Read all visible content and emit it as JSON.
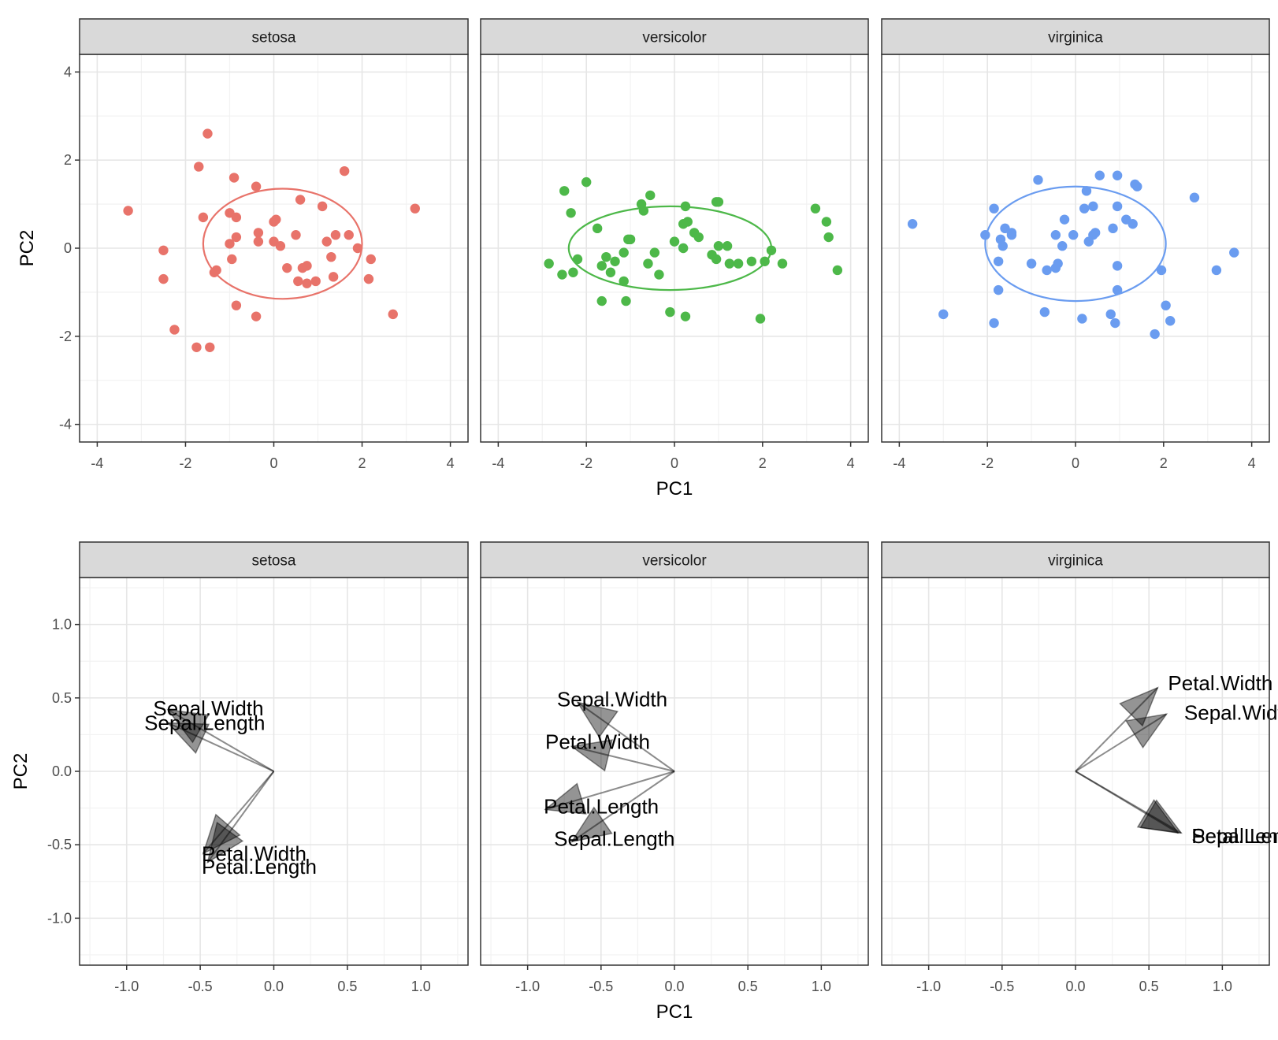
{
  "chart_data": [
    {
      "type": "scatter",
      "title": "",
      "xlabel": "PC1",
      "ylabel": "PC2",
      "xlim": [
        -4.4,
        4.4
      ],
      "ylim": [
        -4.4,
        4.4
      ],
      "xticks": [
        -4,
        -2,
        0,
        2,
        4
      ],
      "yticks": [
        -4,
        -2,
        0,
        2,
        4
      ],
      "xtick_labels": [
        "-4",
        "-2",
        "0",
        "2",
        "4"
      ],
      "ytick_labels": [
        "-4",
        "-2",
        "0",
        "2",
        "4"
      ],
      "grid": true,
      "facets": [
        {
          "name": "setosa",
          "color": "#E8736A",
          "ellipse": {
            "cx": 0.2,
            "cy": 0.1,
            "rx": 1.8,
            "ry": 1.25
          },
          "points": [
            [
              -3.3,
              0.85
            ],
            [
              -1.5,
              2.6
            ],
            [
              -1.7,
              1.85
            ],
            [
              -0.9,
              1.6
            ],
            [
              -0.4,
              1.4
            ],
            [
              1.6,
              1.75
            ],
            [
              3.2,
              0.9
            ],
            [
              -1.6,
              0.7
            ],
            [
              -1.0,
              0.8
            ],
            [
              -0.85,
              0.7
            ],
            [
              0.05,
              0.65
            ],
            [
              0.0,
              0.6
            ],
            [
              0.6,
              1.1
            ],
            [
              1.1,
              0.95
            ],
            [
              -2.5,
              -0.05
            ],
            [
              -2.5,
              -0.7
            ],
            [
              -1.0,
              0.1
            ],
            [
              -0.85,
              0.25
            ],
            [
              -0.35,
              0.35
            ],
            [
              -0.35,
              0.15
            ],
            [
              0.0,
              0.15
            ],
            [
              0.15,
              0.05
            ],
            [
              0.5,
              0.3
            ],
            [
              1.2,
              0.15
            ],
            [
              1.4,
              0.3
            ],
            [
              1.7,
              0.3
            ],
            [
              1.9,
              0.0
            ],
            [
              2.2,
              -0.25
            ],
            [
              -1.3,
              -0.5
            ],
            [
              -1.35,
              -0.55
            ],
            [
              -0.95,
              -0.25
            ],
            [
              0.3,
              -0.45
            ],
            [
              0.65,
              -0.45
            ],
            [
              0.75,
              -0.4
            ],
            [
              1.3,
              -0.2
            ],
            [
              0.55,
              -0.75
            ],
            [
              0.75,
              -0.8
            ],
            [
              0.95,
              -0.75
            ],
            [
              1.35,
              -0.65
            ],
            [
              2.15,
              -0.7
            ],
            [
              -0.85,
              -1.3
            ],
            [
              -0.4,
              -1.55
            ],
            [
              2.7,
              -1.5
            ],
            [
              -2.25,
              -1.85
            ],
            [
              -1.75,
              -2.25
            ],
            [
              -1.45,
              -2.25
            ]
          ]
        },
        {
          "name": "versicolor",
          "color": "#4DB849",
          "ellipse": {
            "cx": -0.1,
            "cy": 0.0,
            "rx": 2.3,
            "ry": 0.95
          },
          "points": [
            [
              -2.0,
              1.5
            ],
            [
              -2.5,
              1.3
            ],
            [
              -0.55,
              1.2
            ],
            [
              -0.75,
              1.0
            ],
            [
              -0.7,
              0.85
            ],
            [
              -2.35,
              0.8
            ],
            [
              -1.75,
              0.45
            ],
            [
              0.25,
              0.95
            ],
            [
              0.95,
              1.05
            ],
            [
              1.0,
              1.05
            ],
            [
              3.2,
              0.9
            ],
            [
              3.45,
              0.6
            ],
            [
              3.5,
              0.25
            ],
            [
              0.3,
              0.6
            ],
            [
              0.2,
              0.55
            ],
            [
              0.45,
              0.35
            ],
            [
              0.55,
              0.25
            ],
            [
              0.0,
              0.15
            ],
            [
              0.2,
              0.0
            ],
            [
              -1.0,
              0.2
            ],
            [
              -1.05,
              0.2
            ],
            [
              -1.15,
              -0.1
            ],
            [
              -0.45,
              -0.1
            ],
            [
              -2.85,
              -0.35
            ],
            [
              -2.2,
              -0.25
            ],
            [
              -1.55,
              -0.2
            ],
            [
              -1.35,
              -0.3
            ],
            [
              -0.6,
              -0.35
            ],
            [
              -1.65,
              -0.4
            ],
            [
              -2.3,
              -0.55
            ],
            [
              -2.55,
              -0.6
            ],
            [
              -1.45,
              -0.55
            ],
            [
              -1.15,
              -0.75
            ],
            [
              -0.35,
              -0.6
            ],
            [
              0.85,
              -0.15
            ],
            [
              0.95,
              -0.25
            ],
            [
              1.0,
              0.05
            ],
            [
              1.2,
              0.05
            ],
            [
              1.25,
              -0.35
            ],
            [
              1.45,
              -0.35
            ],
            [
              1.75,
              -0.3
            ],
            [
              2.05,
              -0.3
            ],
            [
              2.2,
              -0.05
            ],
            [
              2.45,
              -0.35
            ],
            [
              3.7,
              -0.5
            ],
            [
              -1.65,
              -1.2
            ],
            [
              -1.1,
              -1.2
            ],
            [
              -0.1,
              -1.45
            ],
            [
              0.25,
              -1.55
            ],
            [
              1.95,
              -1.6
            ]
          ]
        },
        {
          "name": "virginica",
          "color": "#6A9CF0",
          "ellipse": {
            "cx": 0.0,
            "cy": 0.1,
            "rx": 2.05,
            "ry": 1.3
          },
          "points": [
            [
              -3.7,
              0.55
            ],
            [
              -0.85,
              1.55
            ],
            [
              0.55,
              1.65
            ],
            [
              0.95,
              1.65
            ],
            [
              1.35,
              1.45
            ],
            [
              1.4,
              1.4
            ],
            [
              2.7,
              1.15
            ],
            [
              0.25,
              1.3
            ],
            [
              -1.85,
              0.9
            ],
            [
              0.4,
              0.95
            ],
            [
              0.95,
              0.95
            ],
            [
              0.2,
              0.9
            ],
            [
              -0.25,
              0.65
            ],
            [
              1.15,
              0.65
            ],
            [
              1.3,
              0.55
            ],
            [
              0.85,
              0.45
            ],
            [
              -1.6,
              0.45
            ],
            [
              -2.05,
              0.3
            ],
            [
              -1.45,
              0.35
            ],
            [
              -1.45,
              0.3
            ],
            [
              -1.7,
              0.2
            ],
            [
              -0.45,
              0.3
            ],
            [
              -0.05,
              0.3
            ],
            [
              0.4,
              0.3
            ],
            [
              0.45,
              0.35
            ],
            [
              -1.65,
              0.05
            ],
            [
              -0.3,
              0.05
            ],
            [
              0.3,
              0.15
            ],
            [
              -1.75,
              -0.3
            ],
            [
              -1.0,
              -0.35
            ],
            [
              -0.4,
              -0.35
            ],
            [
              -0.45,
              -0.45
            ],
            [
              -0.65,
              -0.5
            ],
            [
              0.95,
              -0.4
            ],
            [
              1.95,
              -0.5
            ],
            [
              3.2,
              -0.5
            ],
            [
              3.6,
              -0.1
            ],
            [
              -1.75,
              -0.95
            ],
            [
              0.95,
              -0.95
            ],
            [
              -3.0,
              -1.5
            ],
            [
              -0.7,
              -1.45
            ],
            [
              0.15,
              -1.6
            ],
            [
              0.8,
              -1.5
            ],
            [
              0.9,
              -1.7
            ],
            [
              2.05,
              -1.3
            ],
            [
              2.15,
              -1.65
            ],
            [
              1.8,
              -1.95
            ],
            [
              -1.85,
              -1.7
            ]
          ]
        }
      ]
    },
    {
      "type": "vector",
      "title": "",
      "xlabel": "PC1",
      "ylabel": "PC2",
      "xlim": [
        -1.32,
        1.32
      ],
      "ylim": [
        -1.32,
        1.32
      ],
      "xticks": [
        -1.0,
        -0.5,
        0.0,
        0.5,
        1.0
      ],
      "yticks": [
        -1.0,
        -0.5,
        0.0,
        0.5,
        1.0
      ],
      "xtick_labels": [
        "-1.0",
        "-0.5",
        "0.0",
        "0.5",
        "1.0"
      ],
      "ytick_labels": [
        "-1.0",
        "-0.5",
        "0.0",
        "0.5",
        "1.0"
      ],
      "grid": true,
      "facets": [
        {
          "name": "setosa",
          "vectors": [
            {
              "label": "Sepal.Width",
              "x": -0.72,
              "y": 0.42,
              "label_x": -0.82,
              "label_y": 0.43
            },
            {
              "label": "Sepal.Length",
              "x": -0.72,
              "y": 0.33,
              "label_x": -0.88,
              "label_y": 0.33
            },
            {
              "label": "Petal.Width",
              "x": -0.48,
              "y": -0.56,
              "label_x": -0.49,
              "label_y": -0.56
            },
            {
              "label": "Petal.Length",
              "x": -0.45,
              "y": -0.62,
              "label_x": -0.49,
              "label_y": -0.65
            }
          ]
        },
        {
          "name": "versicolor",
          "vectors": [
            {
              "label": "Sepal.Width",
              "x": -0.66,
              "y": 0.47,
              "label_x": -0.8,
              "label_y": 0.49
            },
            {
              "label": "Petal.Width",
              "x": -0.7,
              "y": 0.17,
              "label_x": -0.88,
              "label_y": 0.2
            },
            {
              "label": "Petal.Length",
              "x": -0.88,
              "y": -0.26,
              "label_x": -0.89,
              "label_y": -0.24
            },
            {
              "label": "Sepal.Length",
              "x": -0.7,
              "y": -0.48,
              "label_x": -0.82,
              "label_y": -0.46
            }
          ]
        },
        {
          "name": "virginica",
          "vectors": [
            {
              "label": "Petal.Width",
              "x": 0.56,
              "y": 0.57,
              "label_x": 0.63,
              "label_y": 0.6
            },
            {
              "label": "Sepal.Width",
              "x": 0.62,
              "y": 0.39,
              "label_x": 0.74,
              "label_y": 0.4
            },
            {
              "label": "Petal.Length",
              "x": 0.7,
              "y": -0.42,
              "label_x": 0.79,
              "label_y": -0.44
            },
            {
              "label": "Sepal.Length",
              "x": 0.72,
              "y": -0.42,
              "label_x": 0.79,
              "label_y": -0.44
            }
          ]
        }
      ]
    }
  ]
}
